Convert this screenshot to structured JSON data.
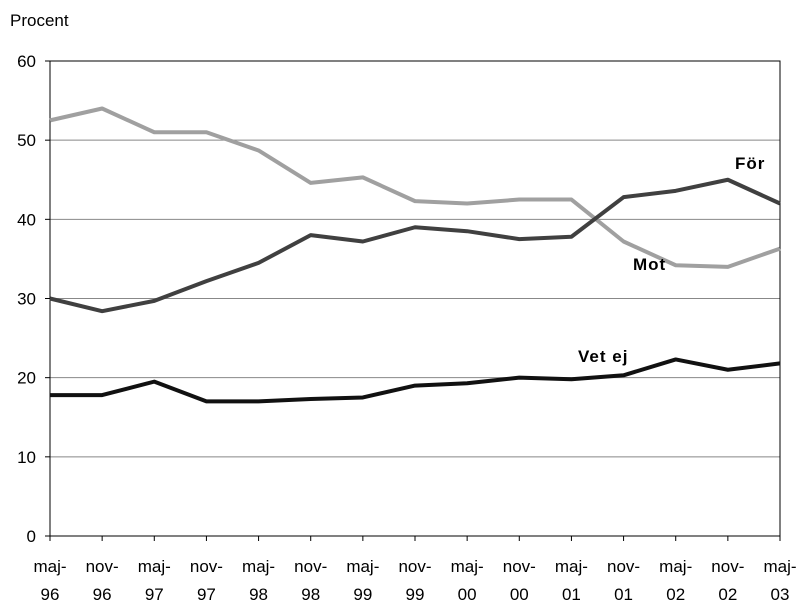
{
  "chart_data": {
    "type": "line",
    "y_label": "Procent",
    "categories": [
      "maj-\n96",
      "nov-\n96",
      "maj-\n97",
      "nov-\n97",
      "maj-\n98",
      "nov-\n98",
      "maj-\n99",
      "nov-\n99",
      "maj-\n00",
      "nov-\n00",
      "maj-\n01",
      "nov-\n01",
      "maj-\n02",
      "nov-\n02",
      "maj-\n03"
    ],
    "series": [
      {
        "name": "Mot",
        "color": "#a0a0a0",
        "values": [
          52.5,
          54,
          51,
          51,
          48.7,
          44.6,
          45.3,
          42.3,
          42,
          42.5,
          42.5,
          37.2,
          34.2,
          34,
          36.3
        ]
      },
      {
        "name": "För",
        "color": "#404040",
        "values": [
          30,
          28.4,
          29.7,
          32.2,
          34.5,
          38,
          37.2,
          39,
          38.5,
          37.5,
          37.8,
          42.8,
          43.6,
          45,
          42
        ]
      },
      {
        "name": "Vet ej",
        "color": "#111111",
        "values": [
          17.8,
          17.8,
          19.5,
          17,
          17,
          17.3,
          17.5,
          19,
          19.3,
          20,
          19.8,
          20.3,
          22.3,
          21,
          21.8
        ]
      }
    ],
    "ylim": [
      0,
      60
    ],
    "yticks": [
      0,
      10,
      20,
      30,
      40,
      50,
      60
    ],
    "grid": true
  }
}
